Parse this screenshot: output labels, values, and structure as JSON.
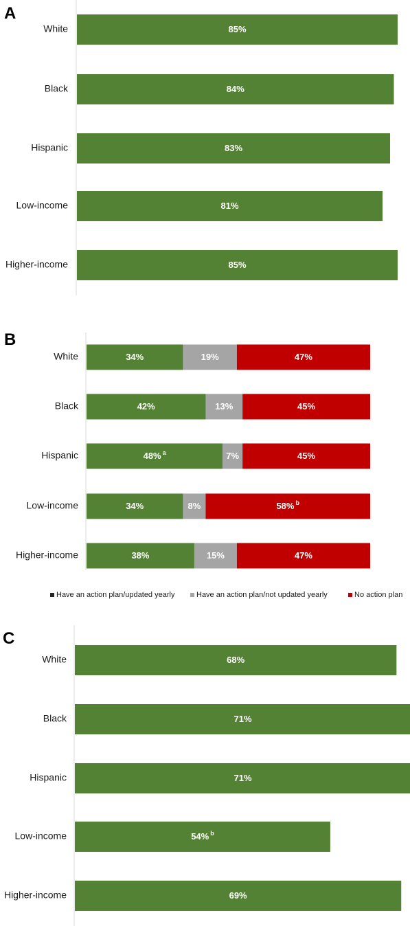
{
  "colors": {
    "green": "#548235",
    "gray": "#a5a5a5",
    "red": "#c00000",
    "legend_black": "#262626",
    "axis": "#d9d9d9"
  },
  "chart_data": [
    {
      "panel": "A",
      "type": "bar",
      "orientation": "horizontal",
      "categories": [
        "White",
        "Black",
        "Hispanic",
        "Low-income",
        "Higher-income"
      ],
      "values": [
        85,
        84,
        83,
        81,
        85
      ],
      "labels": [
        "85%",
        "84%",
        "83%",
        "81%",
        "85%"
      ],
      "superscripts": [
        "",
        "",
        "",
        "",
        ""
      ],
      "xlim": [
        0,
        85
      ]
    },
    {
      "panel": "B",
      "type": "bar",
      "orientation": "horizontal",
      "stacked": true,
      "categories": [
        "White",
        "Black",
        "Hispanic",
        "Low-income",
        "Higher-income"
      ],
      "series": [
        {
          "name": "Have an action plan/updated yearly",
          "color": "#548235",
          "values": [
            34,
            42,
            48,
            34,
            38
          ],
          "labels": [
            "34%",
            "42%",
            "48%",
            "34%",
            "38%"
          ],
          "superscripts": [
            "",
            "",
            "a",
            "",
            ""
          ]
        },
        {
          "name": "Have an action plan/not updated yearly",
          "color": "#a5a5a5",
          "values": [
            19,
            13,
            7,
            8,
            15
          ],
          "labels": [
            "19%",
            "13%",
            "7%",
            "8%",
            "15%"
          ],
          "superscripts": [
            "",
            "",
            "",
            "",
            ""
          ]
        },
        {
          "name": "No action plan",
          "color": "#c00000",
          "values": [
            47,
            45,
            45,
            58,
            47
          ],
          "labels": [
            "47%",
            "45%",
            "45%",
            "58%",
            "47%"
          ],
          "superscripts": [
            "",
            "",
            "",
            "b",
            ""
          ]
        }
      ],
      "legend": {
        "position": "bottom",
        "entries": [
          {
            "label": "Have an action plan/updated yearly",
            "color": "#262626"
          },
          {
            "label": "Have an action plan/not updated yearly",
            "color": "#a5a5a5"
          },
          {
            "label": "No action plan",
            "color": "#c00000"
          }
        ]
      }
    },
    {
      "panel": "C",
      "type": "bar",
      "orientation": "horizontal",
      "categories": [
        "White",
        "Black",
        "Hispanic",
        "Low-income",
        "Higher-income"
      ],
      "values": [
        68,
        71,
        71,
        54,
        69
      ],
      "labels": [
        "68%",
        "71%",
        "71%",
        "54%",
        "69%"
      ],
      "superscripts": [
        "",
        "",
        "",
        "b",
        ""
      ],
      "xlim": [
        0,
        71
      ]
    }
  ]
}
